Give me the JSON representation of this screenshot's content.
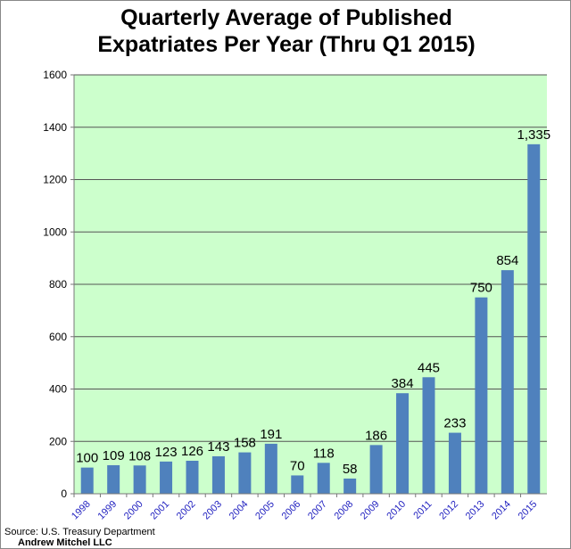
{
  "chart_data": {
    "type": "bar",
    "title_line1": "Quarterly Average of Published",
    "title_line2": "Expatriates Per Year (Thru Q1 2015)",
    "categories": [
      "1998",
      "1999",
      "2000",
      "2001",
      "2002",
      "2003",
      "2004",
      "2005",
      "2006",
      "2007",
      "2008",
      "2009",
      "2010",
      "2011",
      "2012",
      "2013",
      "2014",
      "2015"
    ],
    "values": [
      100,
      109,
      108,
      123,
      126,
      143,
      158,
      191,
      70,
      118,
      58,
      186,
      384,
      445,
      233,
      750,
      854,
      1335
    ],
    "data_labels": [
      "100",
      "109",
      "108",
      "123",
      "126",
      "143",
      "158",
      "191",
      "70",
      "118",
      "58",
      "186",
      "384",
      "445",
      "233",
      "750",
      "854",
      "1,335"
    ],
    "ylim": [
      0,
      1600
    ],
    "yticks": [
      0,
      200,
      400,
      600,
      800,
      1000,
      1200,
      1400,
      1600
    ],
    "grid": true,
    "xlabel": "",
    "ylabel": "",
    "colors": {
      "bar": "#4f81bd",
      "plot_bg": "#ccffcc",
      "grid": "#555555",
      "xtick": "#1f1fbf"
    }
  },
  "source": "Source: U.S. Treasury Department",
  "author": "Andrew Mitchel LLC"
}
